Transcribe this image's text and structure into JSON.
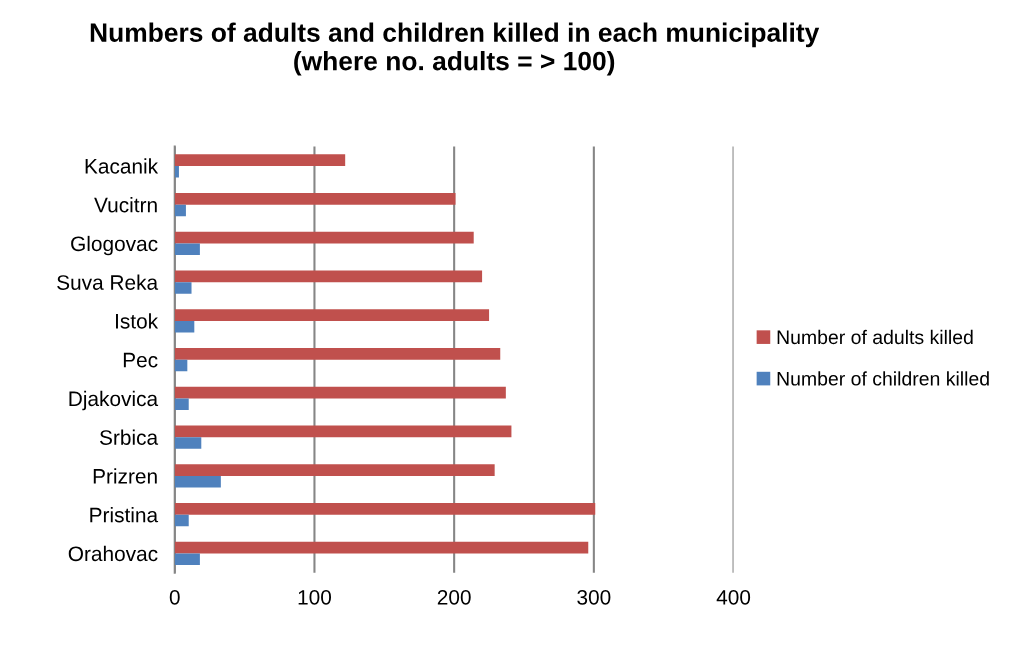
{
  "chart_data": {
    "type": "bar",
    "orientation": "horizontal",
    "title": "Numbers of adults and children killed in each municipality\n(where no. adults = > 100)",
    "categories": [
      "Kacanik",
      "Vucitrn",
      "Glogovac",
      "Suva Reka",
      "Istok",
      "Pec",
      "Djakovica",
      "Srbica",
      "Prizren",
      "Pristina",
      "Orahovac"
    ],
    "series": [
      {
        "name": "Number of adults killed",
        "color": "#c0504d",
        "values": [
          122,
          201,
          214,
          220,
          225,
          233,
          237,
          241,
          229,
          301,
          296
        ]
      },
      {
        "name": "Number of children killed",
        "color": "#4f81bd",
        "values": [
          3,
          8,
          18,
          12,
          14,
          9,
          10,
          19,
          33,
          10,
          18
        ]
      }
    ],
    "xlim": [
      0,
      400
    ],
    "xticks": [
      0,
      100,
      200,
      300,
      400
    ],
    "grid": "x",
    "legend": "right"
  }
}
